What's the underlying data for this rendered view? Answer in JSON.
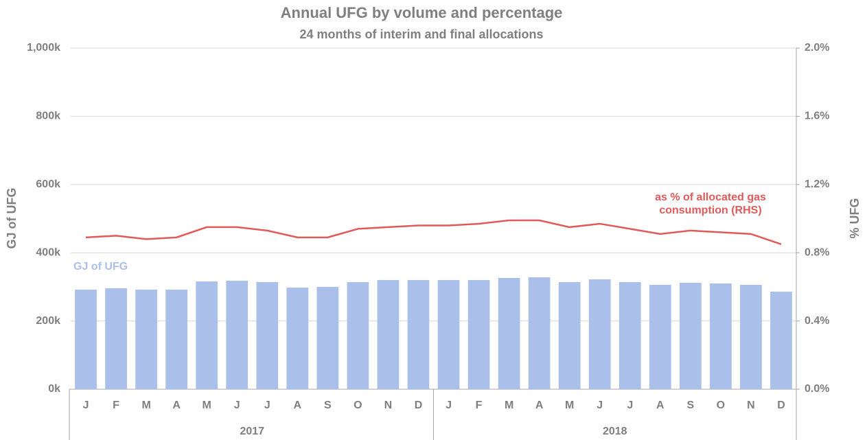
{
  "chart_data": {
    "type": "bar_line",
    "title": "Annual UFG by volume and percentage",
    "subtitle": "24 months of interim and final allocations",
    "y_label": "GJ of UFG",
    "y2_label": "% UFG",
    "categories": [
      "J",
      "F",
      "M",
      "A",
      "M",
      "J",
      "J",
      "A",
      "S",
      "O",
      "N",
      "D",
      "J",
      "F",
      "M",
      "A",
      "M",
      "J",
      "J",
      "A",
      "S",
      "O",
      "N",
      "D"
    ],
    "groups": [
      "2017",
      "2018"
    ],
    "series": [
      {
        "name": "GJ of UFG",
        "type": "bar",
        "color": "#aabfe9",
        "values": [
          292000,
          296000,
          292000,
          292000,
          316000,
          318000,
          314000,
          298000,
          300000,
          314000,
          320000,
          320000,
          320000,
          320000,
          326000,
          328000,
          314000,
          322000,
          314000,
          306000,
          312000,
          310000,
          306000,
          286000
        ]
      },
      {
        "name": "as % of allocated gas consumption (RHS)",
        "type": "line",
        "axis": "y2",
        "color": "#e05a5a",
        "values": [
          0.89,
          0.9,
          0.88,
          0.89,
          0.95,
          0.95,
          0.93,
          0.89,
          0.89,
          0.94,
          0.95,
          0.96,
          0.96,
          0.97,
          0.99,
          0.99,
          0.95,
          0.97,
          0.94,
          0.91,
          0.93,
          0.92,
          0.91,
          0.85
        ]
      }
    ],
    "ylim": [
      0,
      1000000
    ],
    "yticks": [
      {
        "value": 0,
        "label": "0k"
      },
      {
        "value": 200000,
        "label": "200k"
      },
      {
        "value": 400000,
        "label": "400k"
      },
      {
        "value": 600000,
        "label": "600k"
      },
      {
        "value": 800000,
        "label": "800k"
      },
      {
        "value": 1000000,
        "label": "1,000k"
      }
    ],
    "y2lim": [
      0,
      2
    ],
    "y2ticks": [
      {
        "value": 0,
        "label": "0.0%"
      },
      {
        "value": 0.4,
        "label": "0.4%"
      },
      {
        "value": 0.8,
        "label": "0.8%"
      },
      {
        "value": 1.2,
        "label": "1.2%"
      },
      {
        "value": 1.6,
        "label": "1.6%"
      },
      {
        "value": 2,
        "label": "2.0%"
      }
    ],
    "grid": true
  }
}
